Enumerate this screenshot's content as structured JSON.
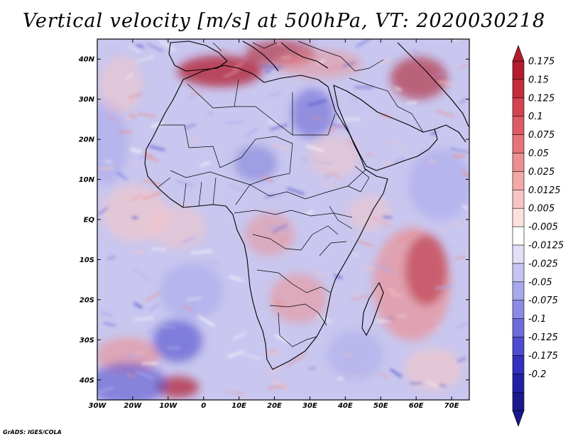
{
  "title": "Vertical velocity [m/s] at 500hPa, VT: 2020030218",
  "credit": "GrADS: IGES/COLA",
  "lat_labels": [
    "40N",
    "30N",
    "20N",
    "10N",
    "EQ",
    "10S",
    "20S",
    "30S",
    "40S"
  ],
  "lon_labels": [
    "30W",
    "20W",
    "10W",
    "0",
    "10E",
    "20E",
    "30E",
    "40E",
    "50E",
    "60E",
    "70E"
  ],
  "colorbar": {
    "labels": [
      "0.175",
      "0.15",
      "0.125",
      "0.1",
      "0.075",
      "0.05",
      "0.025",
      "0.0125",
      "0.005",
      "-0.005",
      "-0.0125",
      "-0.025",
      "-0.05",
      "-0.075",
      "-0.1",
      "-0.125",
      "-0.175",
      "-0.2"
    ],
    "colors": [
      "#b21c2c",
      "#c52d3c",
      "#d24450",
      "#dc5a64",
      "#e47478",
      "#ec8f90",
      "#f2a9a8",
      "#f7c6c4",
      "#fbe2e0",
      "#ffffff",
      "#e2e0f8",
      "#c6c4f2",
      "#aaa8ec",
      "#8c8ae4",
      "#6e6cda",
      "#4e4cce",
      "#3230bc",
      "#2220a4",
      "#1a188c"
    ]
  },
  "field_colors": {
    "base": "#c9c7ef",
    "strong_down": "#b21c2c",
    "moderate_down": "#ec8f90",
    "weak_down": "#f7c6c4",
    "weak_up": "#aaa8ec",
    "strong_up": "#4e4cce",
    "coast": "#000000"
  }
}
